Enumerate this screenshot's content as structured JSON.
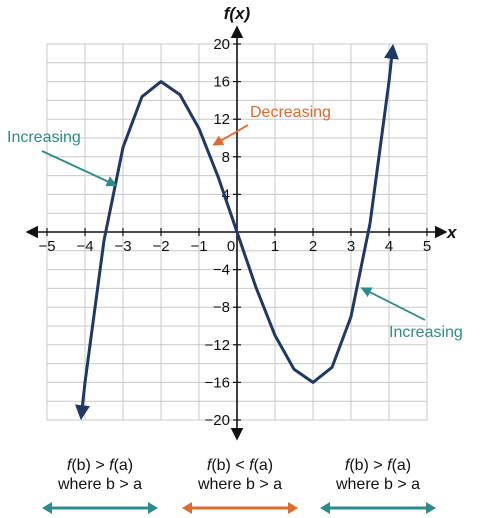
{
  "chart_data": {
    "type": "line",
    "title": "",
    "xlabel": "x",
    "ylabel": "f(x)",
    "xlim": [
      -5,
      5
    ],
    "ylim": [
      -20,
      20
    ],
    "x_ticks": [
      -5,
      -4,
      -3,
      -2,
      -1,
      0,
      1,
      2,
      3,
      4,
      5
    ],
    "y_ticks": [
      -20,
      -16,
      -12,
      -8,
      -4,
      4,
      8,
      12,
      16,
      20
    ],
    "grid": true,
    "series": [
      {
        "color": "#1f3864",
        "x": [
          -4.1,
          -4,
          -3.5,
          -3,
          -2.5,
          -2,
          -1.5,
          -1,
          -0.5,
          0,
          0.5,
          1,
          1.5,
          2,
          2.5,
          3,
          3.5,
          4,
          4.1
        ],
        "y": [
          -19.7,
          -16,
          -0.9,
          9,
          14.4,
          16,
          14.6,
          11,
          5.9,
          0,
          -5.9,
          -11,
          -14.6,
          -16,
          -14.4,
          -9,
          0.9,
          16,
          19.7
        ]
      }
    ],
    "annotations": [
      {
        "text": "Increasing",
        "color": "#2e8b8b",
        "arrow_to": [
          -3.2,
          5
        ]
      },
      {
        "text": "Decreasing",
        "color": "#e06a2c",
        "arrow_to": [
          -0.6,
          9.3
        ]
      },
      {
        "text": "Increasing",
        "color": "#2e8b8b",
        "arrow_to": [
          3.3,
          -6
        ]
      }
    ]
  },
  "legend": [
    {
      "cond_fb": "f",
      "cond_b1": "(b) > ",
      "cond_fa": "f",
      "cond_a1": "(a)",
      "where": "where b > a",
      "color": "#2e8b8b"
    },
    {
      "cond_fb": "f",
      "cond_b1": "(b) < ",
      "cond_fa": "f",
      "cond_a1": "(a)",
      "where": "where b > a",
      "color": "#e06a2c"
    },
    {
      "cond_fb": "f",
      "cond_b1": "(b) > ",
      "cond_fa": "f",
      "cond_a1": "(a)",
      "where": "where b > a",
      "color": "#2e8b8b"
    }
  ]
}
